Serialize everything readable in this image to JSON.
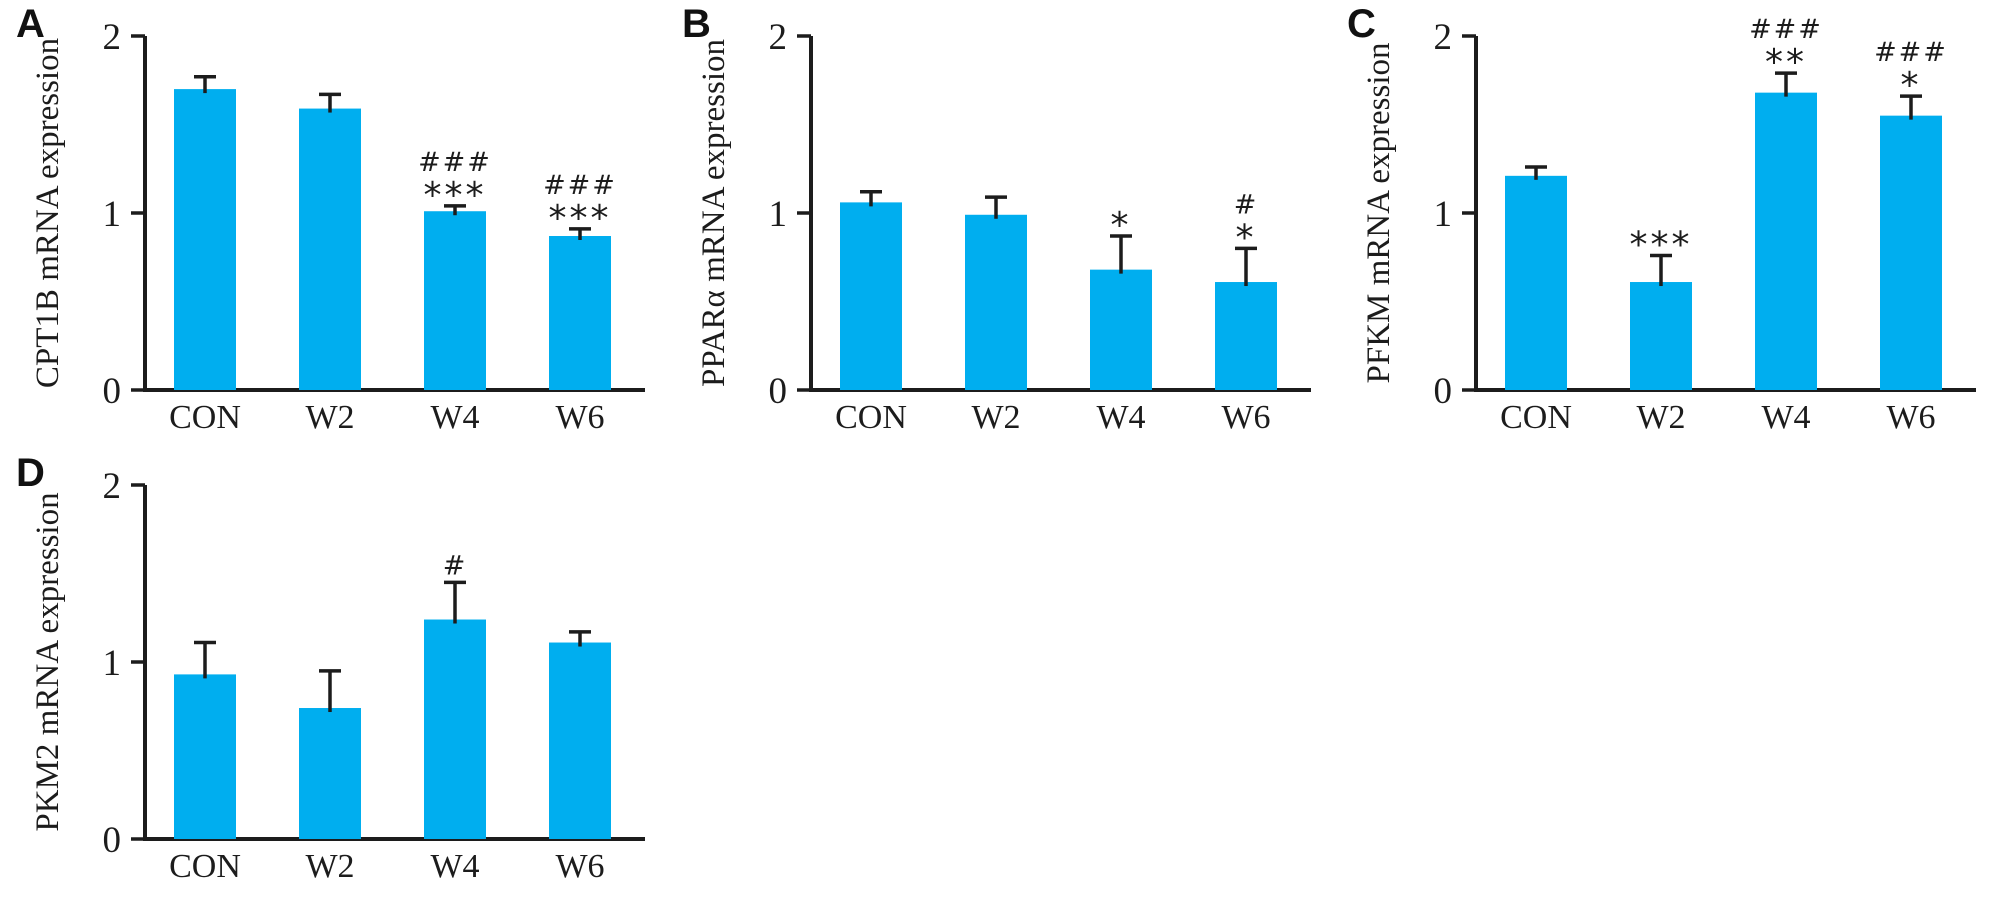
{
  "figure": {
    "background": "#ffffff",
    "bar_color": "#00AEEF",
    "axis_color": "#1c1c1c",
    "text_color": "#1c1c1c"
  },
  "chart_data": [
    {
      "type": "bar",
      "panel": "A",
      "title": "",
      "xlabel": "",
      "ylabel": "CPT1B mRNA expression",
      "categories": [
        "CON",
        "W2",
        "W4",
        "W6"
      ],
      "values": [
        1.7,
        1.59,
        1.01,
        0.87
      ],
      "errors": [
        0.07,
        0.08,
        0.03,
        0.04
      ],
      "annotations": [
        [],
        [],
        [
          "###",
          "***"
        ],
        [
          "###",
          "***"
        ]
      ],
      "ylim": [
        0,
        2
      ],
      "yticks": [
        0,
        1,
        2
      ],
      "grid": false,
      "legend": "none"
    },
    {
      "type": "bar",
      "panel": "B",
      "title": "",
      "xlabel": "",
      "ylabel": "PPARα mRNA expression",
      "categories": [
        "CON",
        "W2",
        "W4",
        "W6"
      ],
      "values": [
        1.06,
        0.99,
        0.68,
        0.61
      ],
      "errors": [
        0.06,
        0.1,
        0.19,
        0.19
      ],
      "annotations": [
        [],
        [],
        [
          "*"
        ],
        [
          "#",
          "*"
        ]
      ],
      "ylim": [
        0,
        2
      ],
      "yticks": [
        0,
        1,
        2
      ],
      "grid": false,
      "legend": "none"
    },
    {
      "type": "bar",
      "panel": "C",
      "title": "",
      "xlabel": "",
      "ylabel": "PFKM mRNA expression",
      "categories": [
        "CON",
        "W2",
        "W4",
        "W6"
      ],
      "values": [
        1.21,
        0.61,
        1.68,
        1.55
      ],
      "errors": [
        0.05,
        0.15,
        0.11,
        0.11
      ],
      "annotations": [
        [],
        [
          "***"
        ],
        [
          "###",
          "**"
        ],
        [
          "###",
          "*"
        ]
      ],
      "ylim": [
        0,
        2
      ],
      "yticks": [
        0,
        1,
        2
      ],
      "grid": false,
      "legend": "none"
    },
    {
      "type": "bar",
      "panel": "D",
      "title": "",
      "xlabel": "",
      "ylabel": "PKM2 mRNA expression",
      "categories": [
        "CON",
        "W2",
        "W4",
        "W6"
      ],
      "values": [
        0.93,
        0.74,
        1.24,
        1.11
      ],
      "errors": [
        0.18,
        0.21,
        0.21,
        0.06
      ],
      "annotations": [
        [],
        [],
        [
          "#"
        ],
        []
      ],
      "ylim": [
        0,
        2
      ],
      "yticks": [
        0,
        1,
        2
      ],
      "grid": false,
      "legend": "none"
    }
  ]
}
